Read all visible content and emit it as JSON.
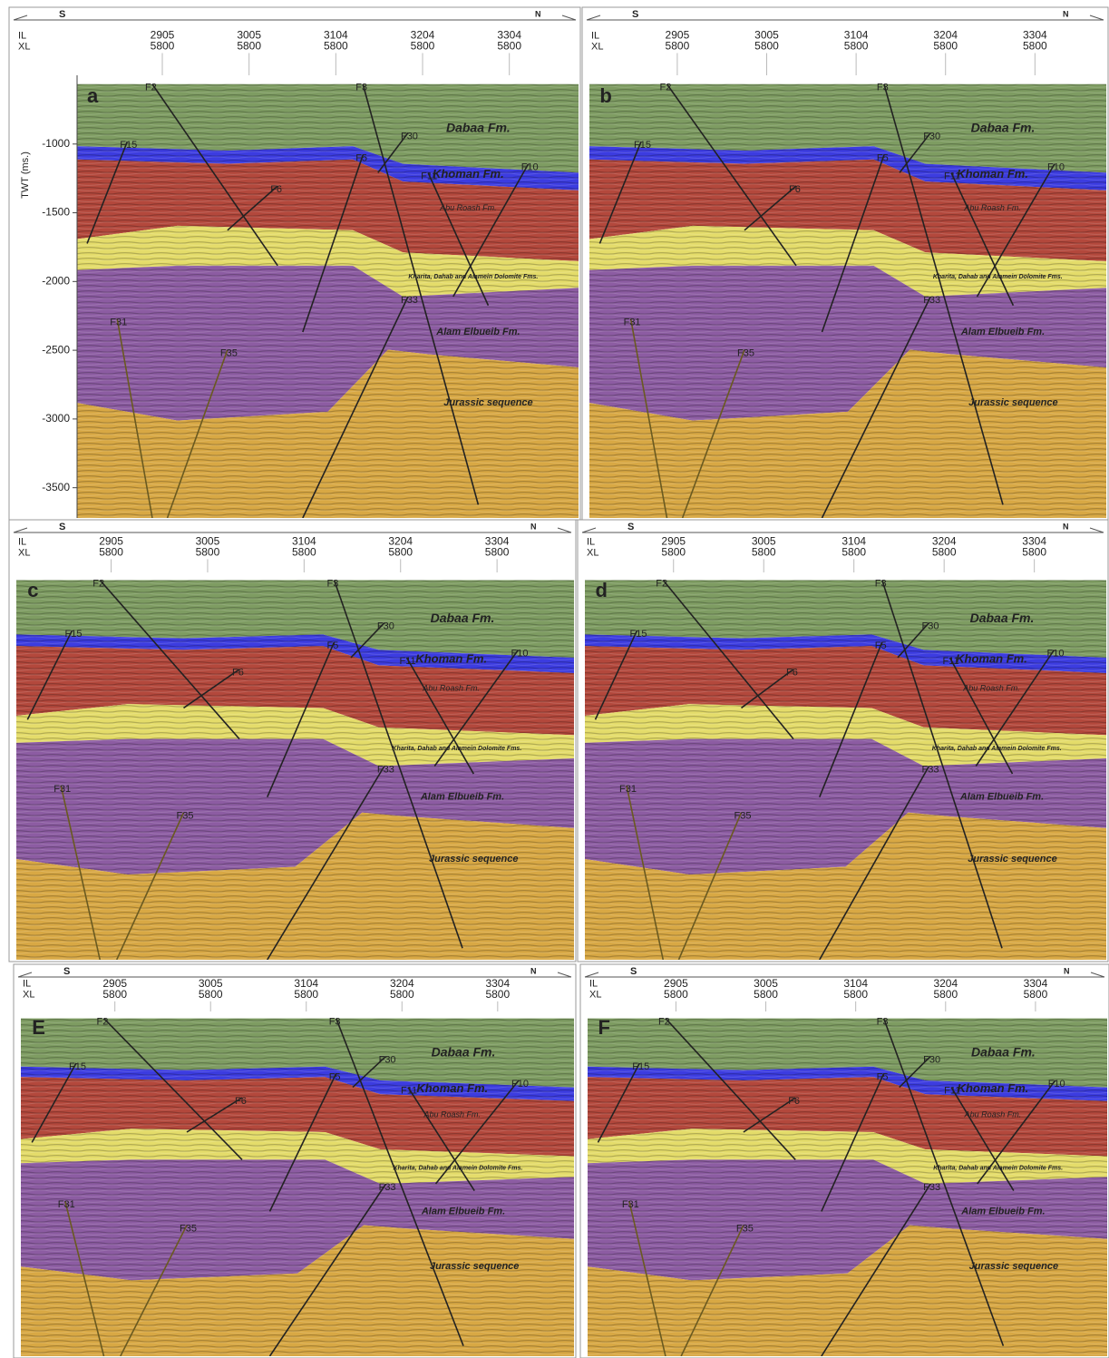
{
  "panels": [
    {
      "label": "a",
      "south": "S",
      "north": "N",
      "il_label": "IL",
      "xl_label": "XL",
      "traces": [
        {
          "il": 2905,
          "xl": 5800
        },
        {
          "il": 3005,
          "xl": 5800
        },
        {
          "il": 3104,
          "xl": 5800
        },
        {
          "il": 3204,
          "xl": 5800
        },
        {
          "il": 3304,
          "xl": 5800
        }
      ],
      "formations": [
        "Dabaa Fm.",
        "Khoman Fm.",
        "Abu Roash Fm.",
        "Kharita, Dahab and Alamein Dolomite Fms.",
        "Alam Elbueib Fm.",
        "Jurassic sequence"
      ],
      "faults": [
        "F2",
        "F3",
        "F15",
        "F30",
        "F5",
        "F11",
        "F10",
        "F6",
        "F33",
        "F31",
        "F35"
      ],
      "twt_axis": {
        "label": "TWT (ms.)",
        "ylim": [
          -500,
          -3720
        ],
        "ticks": [
          -1000,
          -1500,
          -2000,
          -2500,
          -3000,
          -3500
        ]
      }
    },
    {
      "label": "b",
      "south": "S",
      "north": "N",
      "il_label": "IL",
      "xl_label": "XL",
      "traces": [
        {
          "il": 2905,
          "xl": 5800
        },
        {
          "il": 3005,
          "xl": 5800
        },
        {
          "il": 3104,
          "xl": 5800
        },
        {
          "il": 3204,
          "xl": 5800
        },
        {
          "il": 3304,
          "xl": 5800
        }
      ],
      "formations": [
        "Dabaa Fm.",
        "Khoman Fm.",
        "Abu Roash Fm.",
        "Kharita, Dahab and Alamein Dolomite Fms.",
        "Alam Elbueib Fm.",
        "Jurassic sequence"
      ],
      "faults": [
        "F2",
        "F3",
        "F15",
        "F30",
        "F5",
        "F11",
        "F10",
        "F6",
        "F33",
        "F31",
        "F35"
      ]
    },
    {
      "label": "c",
      "south": "S",
      "north": "N",
      "il_label": "IL",
      "xl_label": "XL",
      "traces": [
        {
          "il": 2905,
          "xl": 5800
        },
        {
          "il": 3005,
          "xl": 5800
        },
        {
          "il": 3104,
          "xl": 5800
        },
        {
          "il": 3204,
          "xl": 5800
        },
        {
          "il": 3304,
          "xl": 5800
        }
      ],
      "formations": [
        "Dabaa Fm.",
        "Khoman Fm.",
        "Abu Roash Fm.",
        "Kharita, Dahab and Alamein Dolomite Fms.",
        "Alam Elbueib Fm.",
        "Jurassic sequence"
      ],
      "faults": [
        "F2",
        "F3",
        "F15",
        "F30",
        "F5",
        "F11",
        "F10",
        "F6",
        "F33",
        "F31",
        "F35"
      ]
    },
    {
      "label": "d",
      "south": "S",
      "north": "N",
      "il_label": "IL",
      "xl_label": "XL",
      "traces": [
        {
          "il": 2905,
          "xl": 5800
        },
        {
          "il": 3005,
          "xl": 5800
        },
        {
          "il": 3104,
          "xl": 5800
        },
        {
          "il": 3204,
          "xl": 5800
        },
        {
          "il": 3304,
          "xl": 5800
        }
      ],
      "formations": [
        "Dabaa Fm.",
        "Khoman Fm.",
        "Abu Roash Fm.",
        "Kharita, Dahab and Alamein Dolomite Fms.",
        "Alam Elbueib Fm.",
        "Jurassic sequence"
      ],
      "faults": [
        "F2",
        "F3",
        "F15",
        "F30",
        "F5",
        "F11",
        "F10",
        "F6",
        "F33",
        "F31",
        "F35"
      ]
    },
    {
      "label": "E",
      "south": "S",
      "north": "N",
      "il_label": "IL",
      "xl_label": "XL",
      "traces": [
        {
          "il": 2905,
          "xl": 5800
        },
        {
          "il": 3005,
          "xl": 5800
        },
        {
          "il": 3104,
          "xl": 5800
        },
        {
          "il": 3204,
          "xl": 5800
        },
        {
          "il": 3304,
          "xl": 5800
        }
      ],
      "formations": [
        "Dabaa Fm.",
        "Khoman Fm.",
        "Abu Roash Fm.",
        "Kharita, Dahab and Alamein Dolomite Fms.",
        "Alam Elbueib Fm.",
        "Jurassic sequence"
      ],
      "faults": [
        "F2",
        "F3",
        "F15",
        "F30",
        "F5",
        "F11",
        "F10",
        "F6",
        "F33",
        "F31",
        "F35"
      ]
    },
    {
      "label": "F",
      "south": "S",
      "north": "N",
      "il_label": "IL",
      "xl_label": "XL",
      "traces": [
        {
          "il": 2905,
          "xl": 5800
        },
        {
          "il": 3005,
          "xl": 5800
        },
        {
          "il": 3104,
          "xl": 5800
        },
        {
          "il": 3204,
          "xl": 5800
        },
        {
          "il": 3304,
          "xl": 5800
        }
      ],
      "formations": [
        "Dabaa Fm.",
        "Khoman Fm.",
        "Abu Roash Fm.",
        "Kharita, Dahab and Alamein Dolomite Fms.",
        "Alam Elbueib Fm.",
        "Jurassic sequence"
      ],
      "faults": [
        "F2",
        "F3",
        "F15",
        "F30",
        "F5",
        "F11",
        "F10",
        "F6",
        "F33",
        "F31",
        "F35"
      ]
    }
  ]
}
